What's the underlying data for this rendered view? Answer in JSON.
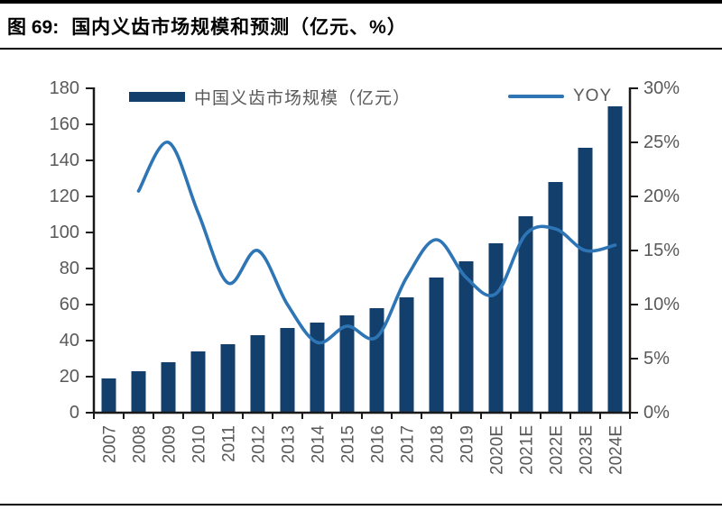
{
  "figure": {
    "number_label": "图 69:",
    "title": "国内义齿市场规模和预测（亿元、%）"
  },
  "legend": {
    "bar_label": "中国义齿市场规模（亿元）",
    "line_label": "YOY"
  },
  "colors": {
    "bar": "#133f6d",
    "line": "#2e75b6",
    "axis": "#1a1a1a",
    "tick_label": "#595959",
    "rule": "#000000"
  },
  "chart_data": {
    "type": "bar+line",
    "title": "国内义齿市场规模和预测（亿元、%）",
    "categories": [
      "2007",
      "2008",
      "2009",
      "2010",
      "2011",
      "2012",
      "2013",
      "2014",
      "2015",
      "2016",
      "2017",
      "2018",
      "2019",
      "2020E",
      "2021E",
      "2022E",
      "2023E",
      "2024E"
    ],
    "series": [
      {
        "name": "中国义齿市场规模（亿元）",
        "type": "bar",
        "axis": "left",
        "values": [
          19,
          23,
          28,
          34,
          38,
          43,
          47,
          50,
          54,
          58,
          64,
          75,
          84,
          94,
          109,
          128,
          147,
          170
        ]
      },
      {
        "name": "YOY",
        "type": "line",
        "axis": "right",
        "values": [
          null,
          20.5,
          25,
          18.5,
          12,
          15,
          10,
          6.5,
          8,
          7,
          12.5,
          16,
          12.5,
          11,
          16.5,
          17,
          15,
          15.5
        ]
      }
    ],
    "left_axis": {
      "min": 0,
      "max": 180,
      "step": 20,
      "tick_labels": [
        "0",
        "20",
        "40",
        "60",
        "80",
        "100",
        "120",
        "140",
        "160",
        "180"
      ]
    },
    "right_axis": {
      "min": 0,
      "max": 30,
      "step": 5,
      "tick_labels": [
        "0%",
        "5%",
        "10%",
        "15%",
        "20%",
        "25%",
        "30%"
      ]
    },
    "grid": false,
    "legend_position": "top",
    "x_labels_rotated_90": true
  }
}
